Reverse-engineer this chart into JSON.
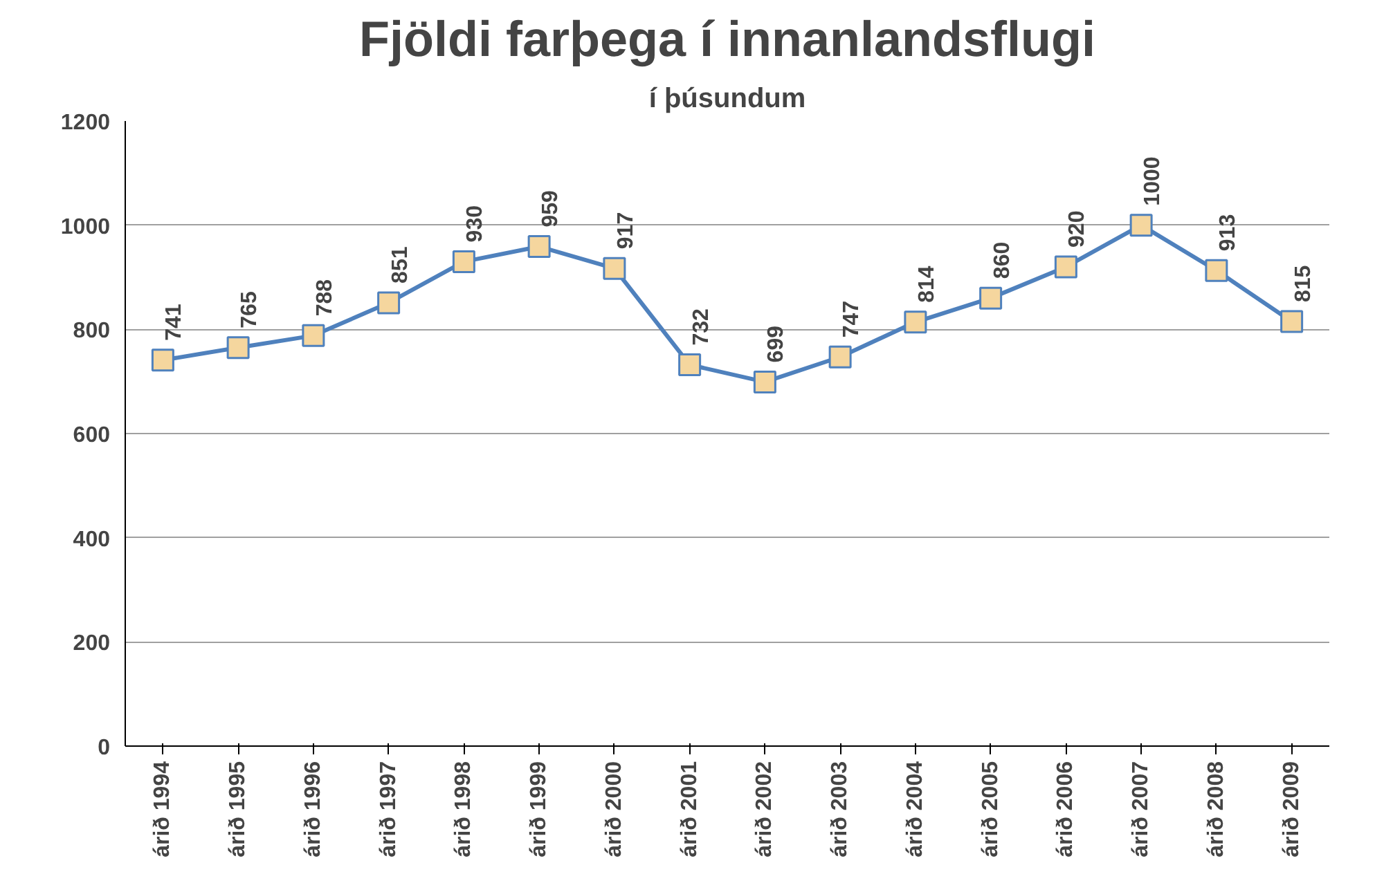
{
  "chart_data": {
    "type": "line",
    "title": "Fjöldi farþega í innanlandsflugi",
    "subtitle": "í þúsundum",
    "categories": [
      "árið 1994",
      "árið 1995",
      "árið 1996",
      "árið 1997",
      "árið 1998",
      "árið 1999",
      "árið 2000",
      "árið 2001",
      "árið 2002",
      "árið 2003",
      "árið 2004",
      "árið 2005",
      "árið 2006",
      "árið 2007",
      "árið 2008",
      "árið 2009"
    ],
    "series": [
      {
        "color": "#4f81bd",
        "values": [
          741,
          765,
          788,
          851,
          930,
          959,
          917,
          732,
          699,
          747,
          814,
          860,
          920,
          1000,
          913,
          815
        ]
      }
    ],
    "ylim": [
      0,
      1200
    ],
    "yticks": [
      0,
      200,
      400,
      600,
      800,
      1000,
      1200
    ],
    "grid": "y",
    "marker": "square",
    "line_style": "solid",
    "data_labels": true
  }
}
